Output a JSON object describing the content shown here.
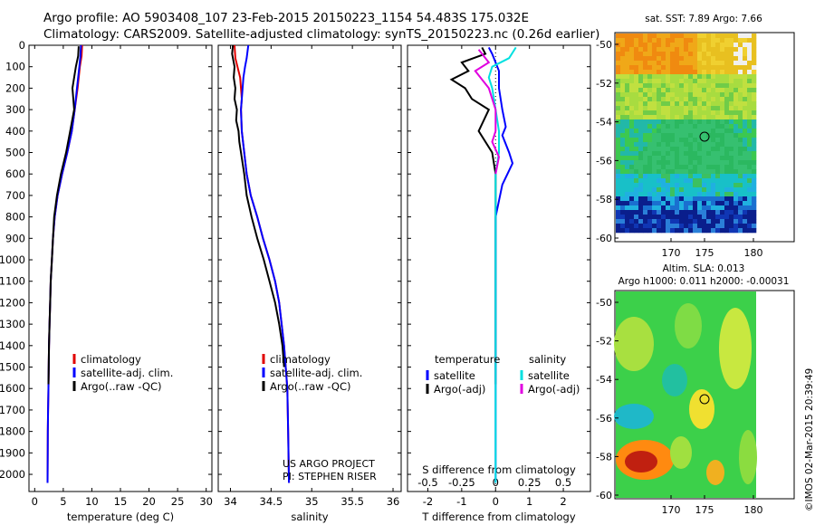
{
  "header": {
    "line1": "Argo profile: AO 5903408_107 23-Feb-2015 20150223_1154 54.483S 175.032E",
    "line2": "Climatology: CARS2009. Satellite-adjusted climatology: synTS_20150223.nc (0.26d earlier)"
  },
  "watermark": "©IMOS 02-Mar-2015 20:39:49",
  "colors": {
    "climatology": "#e00000",
    "satellite": "#0000ff",
    "argo": "#000000",
    "salinity_sat": "#00e0e0",
    "salinity_argo": "#e000e0"
  },
  "y_axis": {
    "ticks": [
      0,
      100,
      200,
      300,
      400,
      500,
      600,
      700,
      800,
      900,
      1000,
      1100,
      1200,
      1300,
      1400,
      1500,
      1600,
      1700,
      1800,
      1900,
      2000
    ],
    "labels": [
      "0",
      "100",
      "200",
      "300",
      "400",
      "500",
      "600",
      "700",
      "800",
      "900",
      "1000",
      "1100",
      "1200",
      "1300",
      "1400",
      "1500",
      "1600",
      "1700",
      "1800",
      "1900",
      "2000"
    ],
    "ylim": [
      0,
      2080
    ],
    "inverted": true
  },
  "chart_data": [
    {
      "type": "line",
      "xlabel": "temperature (deg C)",
      "xlim": [
        -1,
        31
      ],
      "xticks": [
        0,
        5,
        10,
        15,
        20,
        25,
        30
      ],
      "xtick_labels": [
        "0",
        "5",
        "10",
        "15",
        "20",
        "25",
        "30"
      ],
      "legend": {
        "placement": "lower-center",
        "entries": [
          {
            "label": "climatology",
            "color": "#e00000"
          },
          {
            "label": "satellite-adj. clim.",
            "color": "#0000ff"
          },
          {
            "label": "Argo(..raw -QC)",
            "color": "#000000"
          }
        ]
      },
      "series": [
        {
          "key": "climatology",
          "color": "#e00000",
          "x": [
            8.3,
            8.2,
            7.9,
            7.5,
            7.0,
            6.5,
            5.7,
            4.8,
            4.0,
            3.5,
            3.2,
            3.0,
            2.8,
            2.7,
            2.6,
            2.5,
            2.45,
            2.4,
            2.35,
            2.3,
            2.28,
            2.25
          ],
          "y": [
            0,
            50,
            100,
            200,
            300,
            400,
            500,
            600,
            700,
            800,
            900,
            1000,
            1100,
            1200,
            1300,
            1400,
            1500,
            1600,
            1700,
            1800,
            1900,
            2040
          ]
        },
        {
          "key": "satellite",
          "color": "#0000ff",
          "x": [
            8.1,
            8.0,
            7.8,
            7.4,
            7.0,
            6.5,
            5.7,
            4.8,
            4.0,
            3.5,
            3.2,
            3.0,
            2.8,
            2.7,
            2.6,
            2.5,
            2.45,
            2.4,
            2.35,
            2.3,
            2.28,
            2.25
          ],
          "y": [
            0,
            50,
            100,
            200,
            300,
            400,
            500,
            600,
            700,
            800,
            900,
            1000,
            1100,
            1200,
            1300,
            1400,
            1500,
            1600,
            1700,
            1800,
            1900,
            2040
          ]
        },
        {
          "key": "argo",
          "color": "#000000",
          "x": [
            7.7,
            7.6,
            7.2,
            6.6,
            6.9,
            6.2,
            5.5,
            4.6,
            3.9,
            3.4,
            3.2,
            3.0,
            2.8,
            2.7,
            2.6,
            2.5,
            2.45,
            2.4
          ],
          "y": [
            5,
            50,
            100,
            200,
            300,
            400,
            500,
            600,
            700,
            800,
            900,
            1000,
            1100,
            1200,
            1300,
            1400,
            1500,
            1580
          ]
        }
      ]
    },
    {
      "type": "line",
      "xlabel": "salinity",
      "xlim": [
        33.85,
        36.1
      ],
      "xticks": [
        34,
        34.5,
        35,
        35.5,
        36
      ],
      "xtick_labels": [
        "34",
        "34.5",
        "35",
        "35.5",
        "36"
      ],
      "legend": {
        "placement": "lower-center",
        "entries": [
          {
            "label": "climatology",
            "color": "#e00000"
          },
          {
            "label": "satellite-adj. clim.",
            "color": "#0000ff"
          },
          {
            "label": "Argo(..raw -QC)",
            "color": "#000000"
          }
        ]
      },
      "annotation": [
        "US ARGO PROJECT",
        "PI: STEPHEN RISER"
      ],
      "series": [
        {
          "key": "climatology",
          "color": "#e00000",
          "x": [
            34.05,
            34.06,
            34.12,
            34.14,
            34.13,
            34.14,
            34.17,
            34.2,
            34.25,
            34.33,
            34.4,
            34.48,
            34.55,
            34.6,
            34.63,
            34.66,
            34.68,
            34.7,
            34.71,
            34.72
          ],
          "y": [
            0,
            60,
            150,
            250,
            300,
            400,
            500,
            600,
            700,
            800,
            900,
            1000,
            1100,
            1200,
            1300,
            1400,
            1500,
            1600,
            1800,
            2040
          ]
        },
        {
          "key": "satellite",
          "color": "#0000ff",
          "x": [
            34.22,
            34.2,
            34.18,
            34.16,
            34.14,
            34.13,
            34.14,
            34.17,
            34.2,
            34.25,
            34.33,
            34.4,
            34.48,
            34.55,
            34.6,
            34.63,
            34.66,
            34.68,
            34.7,
            34.71,
            34.72
          ],
          "y": [
            0,
            60,
            100,
            150,
            250,
            300,
            400,
            500,
            600,
            700,
            800,
            900,
            1000,
            1100,
            1200,
            1300,
            1400,
            1500,
            1600,
            1800,
            2040
          ]
        },
        {
          "key": "argo",
          "color": "#000000",
          "x": [
            34.03,
            34.02,
            34.05,
            34.04,
            34.06,
            34.05,
            34.08,
            34.07,
            34.1,
            34.11,
            34.13,
            34.17,
            34.2,
            34.26,
            34.33,
            34.41,
            34.48,
            34.55,
            34.6,
            34.64,
            34.66
          ],
          "y": [
            0,
            40,
            100,
            150,
            200,
            250,
            300,
            350,
            400,
            450,
            500,
            600,
            700,
            800,
            900,
            1000,
            1100,
            1200,
            1300,
            1400,
            1500
          ]
        }
      ]
    },
    {
      "type": "line",
      "xlabel": "T difference from climatology",
      "xlabel_top": "S difference from climatology",
      "xlim": [
        -2.6,
        2.8
      ],
      "xticks": [
        -2,
        -1,
        0,
        1,
        2
      ],
      "xtick_labels": [
        "-2",
        "-1",
        "0",
        "1",
        "2"
      ],
      "top_ticks": [
        -0.5,
        -0.25,
        0,
        0.25,
        0.5
      ],
      "top_tick_labels": [
        "-0.5",
        "-0.25",
        "0",
        "0.25",
        "0.5"
      ],
      "legend": {
        "placement": "lower-center",
        "groups": [
          {
            "title": "temperature",
            "entries": [
              {
                "label": "satellite",
                "color": "#0000ff"
              },
              {
                "label": "Argo(-adj)",
                "color": "#000000"
              }
            ]
          },
          {
            "title": "salinity",
            "entries": [
              {
                "label": "satellite",
                "color": "#00e0e0"
              },
              {
                "label": "Argo(-adj)",
                "color": "#e000e0"
              }
            ]
          }
        ]
      },
      "series": [
        {
          "key": "temp-argo",
          "color": "#000000",
          "x": [
            -0.4,
            -0.3,
            -1.0,
            -0.8,
            -1.3,
            -0.9,
            -0.7,
            -0.2,
            -0.5,
            -0.1,
            0.0,
            0.0,
            0.0,
            0.0
          ],
          "y": [
            10,
            40,
            80,
            120,
            160,
            200,
            250,
            300,
            400,
            500,
            600,
            800,
            1000,
            1580
          ]
        },
        {
          "key": "temp-sat",
          "color": "#0000ff",
          "x": [
            -0.2,
            -0.1,
            0.0,
            0.1,
            0.1,
            0.2,
            0.3,
            0.2,
            0.4,
            0.5,
            0.2,
            0.0,
            0.0,
            0.0,
            0.0
          ],
          "y": [
            10,
            40,
            80,
            120,
            200,
            300,
            380,
            420,
            500,
            550,
            650,
            800,
            1000,
            1600,
            2040
          ]
        },
        {
          "key": "sal-sat",
          "color": "#00e0e0",
          "x": [
            0.6,
            0.4,
            -0.1,
            -0.2,
            -0.1,
            0.0,
            0.1,
            0.1,
            0.0,
            0.0,
            0.0,
            0.0,
            0.0
          ],
          "y": [
            10,
            60,
            100,
            150,
            200,
            300,
            400,
            500,
            600,
            800,
            1000,
            1500,
            2040
          ]
        },
        {
          "key": "sal-argo",
          "color": "#e000e0",
          "x": [
            -0.5,
            -0.2,
            -0.6,
            -0.2,
            0.0,
            0.0,
            -0.1,
            0.1,
            0.0
          ],
          "y": [
            20,
            80,
            120,
            200,
            300,
            400,
            450,
            520,
            600
          ]
        }
      ]
    }
  ],
  "maps": [
    {
      "title": "sat. SST: 7.89 Argo: 7.66",
      "xticks": [
        "170",
        "175",
        "180"
      ],
      "yticks": [
        "-50",
        "-52",
        "-54",
        "-56",
        "-58",
        "-60"
      ]
    },
    {
      "title_line1": "Altim. SLA: 0.013",
      "title_line2": "Argo h1000: 0.011 h2000: -0.00031",
      "xticks": [
        "170",
        "175",
        "180"
      ],
      "yticks": [
        "-50",
        "-52",
        "-54",
        "-56",
        "-58",
        "-60"
      ]
    }
  ]
}
